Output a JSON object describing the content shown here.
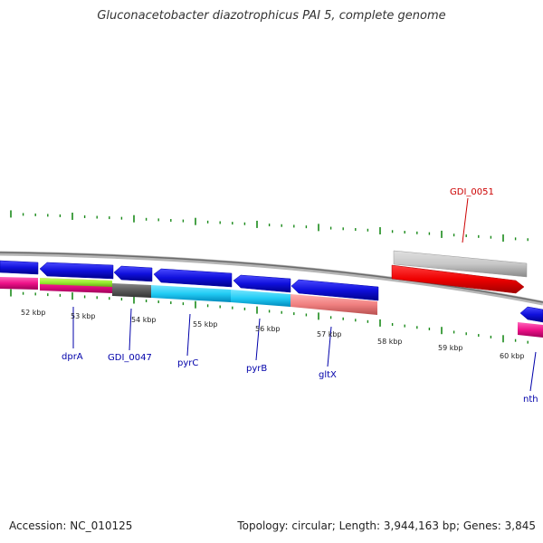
{
  "title": "Gluconacetobacter diazotrophicus PAI 5, complete genome",
  "footer": {
    "accession": "Accession: NC_010125",
    "summary": "Topology: circular; Length: 3,944,163 bp; Genes: 3,845"
  },
  "colors": {
    "tick": "#1a8a1a",
    "backbone": "#888888",
    "label_blue": "#0000aa",
    "label_red": "#cc0000",
    "forward_gene": "#e00000",
    "reverse_gene": "#1010dd"
  },
  "kbp_ticks": [
    {
      "id": "52",
      "label": "52 kbp"
    },
    {
      "id": "53",
      "label": "53 kbp"
    },
    {
      "id": "54",
      "label": "54 kbp"
    },
    {
      "id": "55",
      "label": "55 kbp"
    },
    {
      "id": "56",
      "label": "56 kbp"
    },
    {
      "id": "57",
      "label": "57 kbp"
    },
    {
      "id": "58",
      "label": "58 kbp"
    },
    {
      "id": "59",
      "label": "59 kbp"
    },
    {
      "id": "60",
      "label": "60 kbp"
    }
  ],
  "gene_labels": [
    {
      "id": "dprA",
      "text": "dprA",
      "color": "#0000aa"
    },
    {
      "id": "GDI_0047",
      "text": "GDI_0047",
      "color": "#0000aa"
    },
    {
      "id": "pyrC",
      "text": "pyrC",
      "color": "#0000aa"
    },
    {
      "id": "pyrB",
      "text": "pyrB",
      "color": "#0000aa"
    },
    {
      "id": "gltX",
      "text": "gltX",
      "color": "#0000aa"
    },
    {
      "id": "nth",
      "text": "nth",
      "color": "#0000aa"
    },
    {
      "id": "GDI_0051",
      "text": "GDI_0051",
      "color": "#cc0000"
    }
  ]
}
